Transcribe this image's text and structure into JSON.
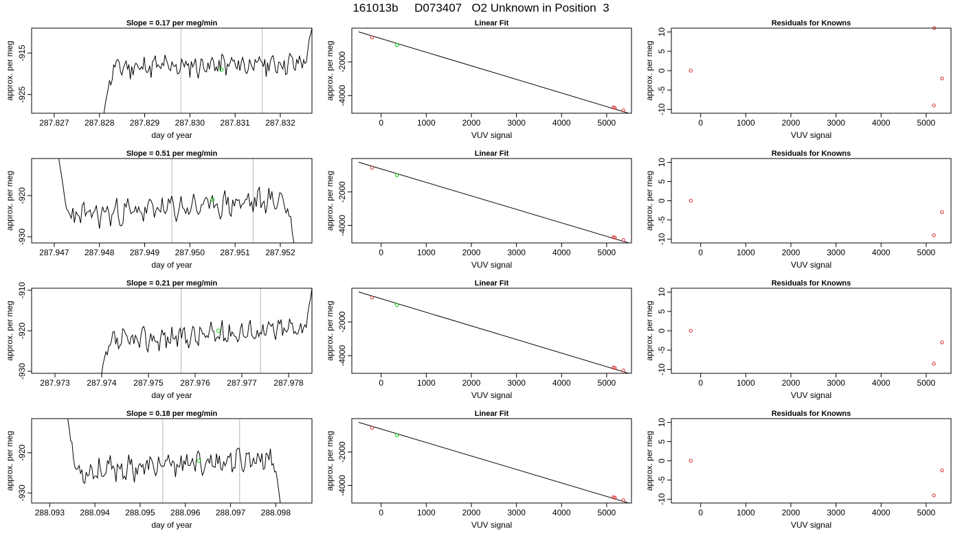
{
  "figure": {
    "title": "161013b     D073407   O2 Unknown in Position  3"
  },
  "chart_data": [
    {
      "type": "line",
      "panel": "timeseries",
      "row": 1,
      "title": "Slope =  0.17  per meg/min",
      "xlabel": "day of year",
      "ylabel": "approx. per meg",
      "xlim": [
        287.8265,
        287.8327
      ],
      "ylim": [
        -929.5,
        -909.0
      ],
      "xticks": [
        "287.827",
        "287.828",
        "287.829",
        "287.830",
        "287.831",
        "287.832"
      ],
      "yticks": [
        "-915",
        "-925"
      ],
      "vlines": [
        287.8298,
        287.8316
      ],
      "marker": {
        "x": 287.8307,
        "y": -919.0,
        "color": "#00cc00"
      },
      "series": [
        {
          "values": {
            "start": 287.8281,
            "end": 287.8327,
            "base": -918,
            "enter": -929.5,
            "exit": -909.0,
            "trend": 1.2,
            "amp": 2.1,
            "seed": 11
          }
        }
      ]
    },
    {
      "type": "scatter",
      "panel": "linear_fit",
      "row": 1,
      "title": "Linear Fit",
      "xlabel": "VUV signal",
      "ylabel": "approx. per meg",
      "xlim": [
        -650,
        5550
      ],
      "ylim": [
        -5050,
        0
      ],
      "xticks": [
        "0",
        "1000",
        "2000",
        "3000",
        "4000",
        "5000"
      ],
      "yticks": [
        "-2000",
        "-4000"
      ],
      "line": [
        [
          -500,
          -220
        ],
        [
          5550,
          -5100
        ]
      ],
      "knowns": [
        [
          -200,
          -550
        ],
        [
          5150,
          -4710
        ],
        [
          5180,
          -4730
        ],
        [
          5370,
          -4880
        ]
      ],
      "unknown": [
        [
          350,
          -1000
        ]
      ]
    },
    {
      "type": "scatter",
      "panel": "residuals",
      "row": 1,
      "title": "Residuals for Knowns",
      "xlabel": "VUV signal",
      "ylabel": "approx. per meg",
      "xlim": [
        -650,
        5550
      ],
      "ylim": [
        -11,
        11
      ],
      "xticks": [
        "0",
        "1000",
        "2000",
        "3000",
        "4000",
        "5000"
      ],
      "yticks": [
        "10",
        "5",
        "0",
        "-5",
        "-10"
      ],
      "points": [
        [
          -220,
          0.0
        ],
        [
          5180,
          11.0
        ],
        [
          5350,
          -2.0
        ],
        [
          5170,
          -9.0
        ]
      ]
    },
    {
      "type": "line",
      "panel": "timeseries",
      "row": 2,
      "title": "Slope =  0.51  per meg/min",
      "xlabel": "day of year",
      "ylabel": "approx. per meg",
      "xlim": [
        287.9465,
        287.9527
      ],
      "ylim": [
        -931.5,
        -911.0
      ],
      "xticks": [
        "287.947",
        "287.948",
        "287.949",
        "287.950",
        "287.951",
        "287.952"
      ],
      "yticks": [
        "-920",
        "-930"
      ],
      "vlines": [
        287.9496,
        287.9514
      ],
      "marker": {
        "x": 287.9505,
        "y": -921.0,
        "color": "#00cc00"
      },
      "series": [
        {
          "values": {
            "start": 287.9471,
            "end": 287.9523,
            "base": -923,
            "enter": -911.0,
            "exit": -931.5,
            "trend": 4.5,
            "amp": 2.4,
            "seed": 23
          }
        }
      ]
    },
    {
      "type": "scatter",
      "panel": "linear_fit",
      "row": 2,
      "title": "Linear Fit",
      "xlabel": "VUV signal",
      "ylabel": "approx. per meg",
      "xlim": [
        -650,
        5550
      ],
      "ylim": [
        -5050,
        0
      ],
      "xticks": [
        "0",
        "1000",
        "2000",
        "3000",
        "4000",
        "5000"
      ],
      "yticks": [
        "-2000",
        "-4000"
      ],
      "line": [
        [
          -500,
          -220
        ],
        [
          5550,
          -5100
        ]
      ],
      "knowns": [
        [
          -200,
          -550
        ],
        [
          5150,
          -4710
        ],
        [
          5180,
          -4730
        ],
        [
          5370,
          -4880
        ]
      ],
      "unknown": [
        [
          350,
          -1000
        ]
      ]
    },
    {
      "type": "scatter",
      "panel": "residuals",
      "row": 2,
      "title": "Residuals for Knowns",
      "xlabel": "VUV signal",
      "ylabel": "approx. per meg",
      "xlim": [
        -650,
        5550
      ],
      "ylim": [
        -11,
        11
      ],
      "xticks": [
        "0",
        "1000",
        "2000",
        "3000",
        "4000",
        "5000"
      ],
      "yticks": [
        "10",
        "5",
        "0",
        "-5",
        "-10"
      ],
      "points": [
        [
          -220,
          0.0
        ],
        [
          5350,
          -3.0
        ],
        [
          5170,
          -9.0
        ]
      ]
    },
    {
      "type": "line",
      "panel": "timeseries",
      "row": 3,
      "title": "Slope =  0.21  per meg/min",
      "xlabel": "day of year",
      "ylabel": "approx. per meg",
      "xlim": [
        287.9725,
        287.9785
      ],
      "ylim": [
        -930.5,
        -909.5
      ],
      "xticks": [
        "287.973",
        "287.974",
        "287.975",
        "287.976",
        "287.977",
        "287.978"
      ],
      "yticks": [
        "-910",
        "-920",
        "-930"
      ],
      "vlines": [
        287.9757,
        287.9774
      ],
      "marker": {
        "x": 287.9765,
        "y": -920.0,
        "color": "#00cc00"
      },
      "series": [
        {
          "values": {
            "start": 287.974,
            "end": 287.9785,
            "base": -921,
            "enter": -930.5,
            "exit": -909.5,
            "trend": 4.0,
            "amp": 2.2,
            "seed": 37
          }
        }
      ]
    },
    {
      "type": "scatter",
      "panel": "linear_fit",
      "row": 3,
      "title": "Linear Fit",
      "xlabel": "VUV signal",
      "ylabel": "approx. per meg",
      "xlim": [
        -650,
        5550
      ],
      "ylim": [
        -5050,
        0
      ],
      "xticks": [
        "0",
        "1000",
        "2000",
        "3000",
        "4000",
        "5000"
      ],
      "yticks": [
        "-2000",
        "-4000"
      ],
      "line": [
        [
          -500,
          -220
        ],
        [
          5550,
          -5100
        ]
      ],
      "knowns": [
        [
          -200,
          -550
        ],
        [
          5150,
          -4710
        ],
        [
          5180,
          -4730
        ],
        [
          5370,
          -4880
        ]
      ],
      "unknown": [
        [
          350,
          -1000
        ]
      ]
    },
    {
      "type": "scatter",
      "panel": "residuals",
      "row": 3,
      "title": "Residuals for Knowns",
      "xlabel": "VUV signal",
      "ylabel": "approx. per meg",
      "xlim": [
        -650,
        5550
      ],
      "ylim": [
        -11,
        11
      ],
      "xticks": [
        "0",
        "1000",
        "2000",
        "3000",
        "4000",
        "5000"
      ],
      "yticks": [
        "10",
        "5",
        "0",
        "-5",
        "-10"
      ],
      "points": [
        [
          -220,
          0.0
        ],
        [
          5350,
          -3.0
        ],
        [
          5170,
          -8.5
        ]
      ]
    },
    {
      "type": "line",
      "panel": "timeseries",
      "row": 4,
      "title": "Slope =  0.18  per meg/min",
      "xlabel": "day of year",
      "ylabel": "approx. per meg",
      "xlim": [
        288.0926,
        288.0988
      ],
      "ylim": [
        -932.5,
        -911.5
      ],
      "xticks": [
        "288.093",
        "288.094",
        "288.095",
        "288.096",
        "288.097",
        "288.098"
      ],
      "yticks": [
        "-920",
        "-930"
      ],
      "vlines": [
        288.0955,
        288.0972
      ],
      "marker": {
        "x": 288.0963,
        "y": -922.0,
        "color": "#00cc00"
      },
      "series": [
        {
          "values": {
            "start": 288.0934,
            "end": 288.0981,
            "base": -923,
            "enter": -911.5,
            "exit": -932.5,
            "trend": 4.0,
            "amp": 2.3,
            "seed": 53
          }
        }
      ]
    },
    {
      "type": "scatter",
      "panel": "linear_fit",
      "row": 4,
      "title": "Linear Fit",
      "xlabel": "VUV signal",
      "ylabel": "approx. per meg",
      "xlim": [
        -650,
        5550
      ],
      "ylim": [
        -5050,
        0
      ],
      "xticks": [
        "0",
        "1000",
        "2000",
        "3000",
        "4000",
        "5000"
      ],
      "yticks": [
        "-2000",
        "-4000"
      ],
      "line": [
        [
          -500,
          -220
        ],
        [
          5550,
          -5100
        ]
      ],
      "knowns": [
        [
          -200,
          -550
        ],
        [
          5150,
          -4710
        ],
        [
          5180,
          -4730
        ],
        [
          5370,
          -4880
        ]
      ],
      "unknown": [
        [
          350,
          -1000
        ]
      ]
    },
    {
      "type": "scatter",
      "panel": "residuals",
      "row": 4,
      "title": "Residuals for Knowns",
      "xlabel": "VUV signal",
      "ylabel": "approx. per meg",
      "xlim": [
        -650,
        5550
      ],
      "ylim": [
        -11,
        11
      ],
      "xticks": [
        "0",
        "1000",
        "2000",
        "3000",
        "4000",
        "5000"
      ],
      "yticks": [
        "10",
        "5",
        "0",
        "-5",
        "-10"
      ],
      "points": [
        [
          -220,
          0.0
        ],
        [
          5350,
          -2.5
        ],
        [
          5170,
          -9.0
        ]
      ]
    }
  ]
}
